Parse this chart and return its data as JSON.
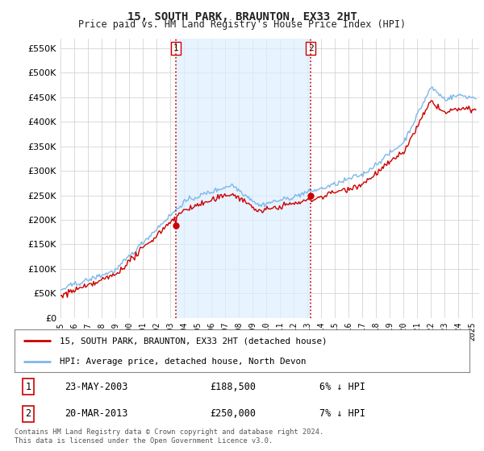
{
  "title": "15, SOUTH PARK, BRAUNTON, EX33 2HT",
  "subtitle": "Price paid vs. HM Land Registry's House Price Index (HPI)",
  "ytick_values": [
    0,
    50000,
    100000,
    150000,
    200000,
    250000,
    300000,
    350000,
    400000,
    450000,
    500000,
    550000
  ],
  "ylim": [
    0,
    570000
  ],
  "xmin_year": 1995.0,
  "xmax_year": 2025.5,
  "xtick_years": [
    1995,
    1996,
    1997,
    1998,
    1999,
    2000,
    2001,
    2002,
    2003,
    2004,
    2005,
    2006,
    2007,
    2008,
    2009,
    2010,
    2011,
    2012,
    2013,
    2014,
    2015,
    2016,
    2017,
    2018,
    2019,
    2020,
    2021,
    2022,
    2023,
    2024,
    2025
  ],
  "hpi_color": "#7db8e8",
  "price_color": "#cc0000",
  "vline_color": "#cc0000",
  "shade_color": "#ddeeff",
  "sale1_year": 2003.389,
  "sale1_price": 188500,
  "sale2_year": 2013.22,
  "sale2_price": 250000,
  "legend_label1": "15, SOUTH PARK, BRAUNTON, EX33 2HT (detached house)",
  "legend_label2": "HPI: Average price, detached house, North Devon",
  "table_row1_num": "1",
  "table_row1_date": "23-MAY-2003",
  "table_row1_price": "£188,500",
  "table_row1_hpi": "6% ↓ HPI",
  "table_row2_num": "2",
  "table_row2_date": "20-MAR-2013",
  "table_row2_price": "£250,000",
  "table_row2_hpi": "7% ↓ HPI",
  "footer": "Contains HM Land Registry data © Crown copyright and database right 2024.\nThis data is licensed under the Open Government Licence v3.0.",
  "background_color": "#ffffff",
  "grid_color": "#cccccc",
  "font_color": "#222222"
}
